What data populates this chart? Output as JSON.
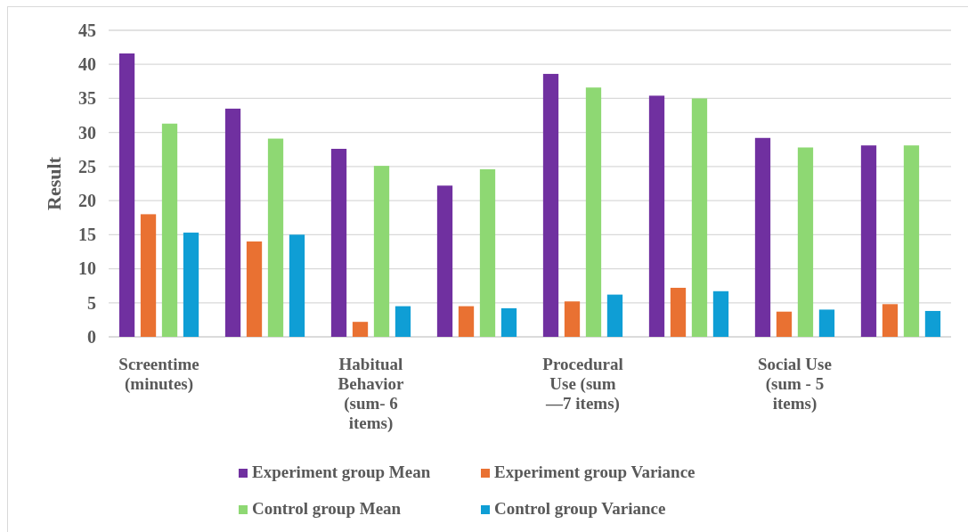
{
  "chart_data": {
    "type": "bar",
    "ylabel": "Result",
    "categories": [
      "Screentime\n(minutes)",
      null,
      "Habitual\nBehavior\n(sum- 6\nitems)",
      null,
      "Procedural\nUse (sum\n—7 items)",
      null,
      "Social Use\n(sum - 5\nitems)",
      null
    ],
    "series": [
      {
        "name": "Experiment group Mean",
        "color": "#7030a0",
        "values": [
          41.6,
          33.5,
          27.6,
          22.2,
          38.6,
          35.4,
          29.2,
          28.1
        ]
      },
      {
        "name": "Experiment group Variance",
        "color": "#e97132",
        "values": [
          18.0,
          14.0,
          2.2,
          4.5,
          5.2,
          7.2,
          3.7,
          4.8
        ]
      },
      {
        "name": "Control group Mean",
        "color": "#8ed873",
        "values": [
          31.3,
          29.1,
          25.1,
          24.6,
          36.6,
          35.0,
          27.8,
          28.1
        ]
      },
      {
        "name": "Control group Variance",
        "color": "#0f9ed5",
        "values": [
          15.3,
          15.0,
          4.5,
          4.2,
          6.2,
          6.7,
          4.0,
          3.8
        ]
      }
    ],
    "ylim": [
      0,
      45
    ],
    "yticks": [
      0,
      5,
      10,
      15,
      20,
      25,
      30,
      35,
      40,
      45
    ],
    "grid": "y",
    "legend": "bottom"
  }
}
